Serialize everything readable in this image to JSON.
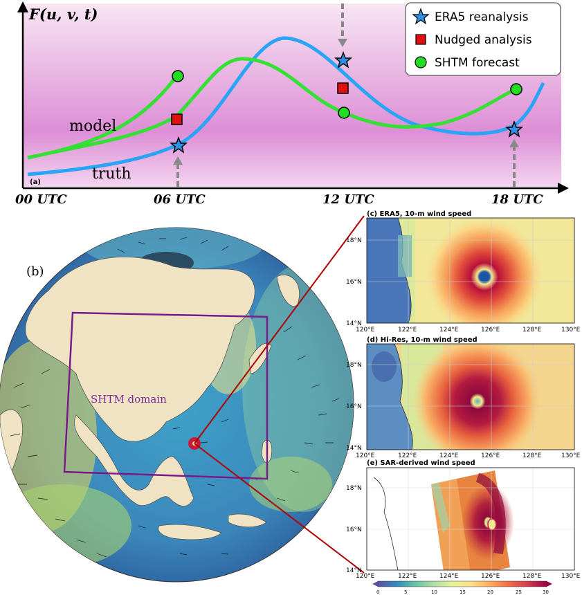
{
  "panel_a": {
    "label": "(a)",
    "function_label": "F(u, v, t)",
    "time_labels": [
      "00 UTC",
      "06 UTC",
      "12 UTC",
      "18 UTC"
    ],
    "curve_labels": {
      "model": "model",
      "truth": "truth"
    },
    "legend": [
      {
        "label": "ERA5 reanalysis",
        "marker": "star",
        "color": "#2f8fe0"
      },
      {
        "label": "Nudged analysis",
        "marker": "square",
        "color": "#e01010"
      },
      {
        "label": "SHTM forecast",
        "marker": "circle",
        "color": "#22dd22"
      }
    ],
    "colors": {
      "model_curve": "#33e033",
      "truth_curve": "#2aa4f4",
      "arrow": "#888888"
    }
  },
  "panel_b": {
    "label": "(b)",
    "domain_label": "SHTM domain",
    "domain_color": "#7a1a8a",
    "connector_color": "#b00000"
  },
  "map_panels": [
    {
      "id": "c",
      "title": "(c) ERA5, 10-m wind speed",
      "lat_labels": [
        "18°N",
        "16°N",
        "14°N"
      ],
      "lon_labels": [
        "120°E",
        "122°E",
        "124°E",
        "126°E",
        "128°E",
        "130°E"
      ]
    },
    {
      "id": "d",
      "title": "(d) Hi-Res, 10-m wind speed",
      "lat_labels": [
        "18°N",
        "16°N",
        "14°N"
      ],
      "lon_labels": [
        "120°E",
        "122°E",
        "124°E",
        "126°E",
        "128°E",
        "130°E"
      ]
    },
    {
      "id": "e",
      "title": "(e) SAR-derived wind speed",
      "lat_labels": [
        "18°N",
        "16°N",
        "14°N"
      ],
      "lon_labels": [
        "120°E",
        "122°E",
        "124°E",
        "126°E",
        "128°E",
        "130°E"
      ]
    }
  ],
  "colorbar": {
    "ticks": [
      "0",
      "5",
      "10",
      "15",
      "20",
      "25",
      "30"
    ],
    "range": [
      0,
      30
    ],
    "colors": [
      "#5e4fa2",
      "#3288bd",
      "#66c2a5",
      "#abdda4",
      "#e6f598",
      "#fee08b",
      "#fdae61",
      "#f46d43",
      "#d53e4f",
      "#9e0142"
    ]
  }
}
